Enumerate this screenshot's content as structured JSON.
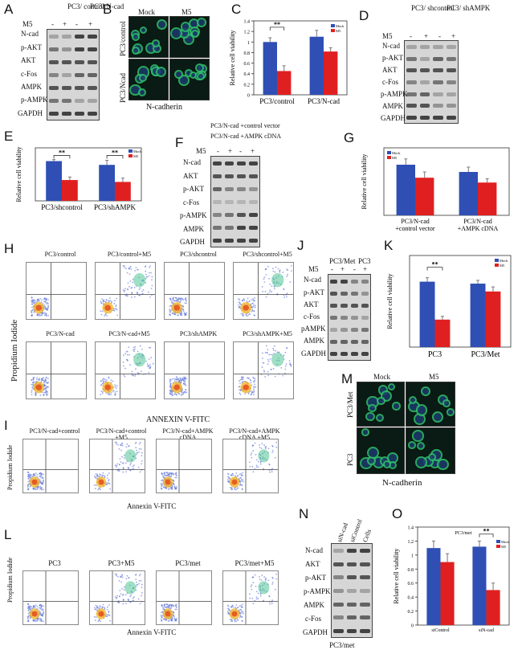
{
  "panels": {
    "A": {
      "letter": "A",
      "col_labels": [
        "PC3/ control",
        "PC3/ N-cad"
      ],
      "m5_label": "M5",
      "m5_signs": [
        "-",
        "+",
        "-",
        "+"
      ],
      "rows": [
        "N-cad",
        "p-AKT",
        "AKT",
        "c-Fos",
        "AMPK",
        "p-AMPK",
        "GAPDH"
      ]
    },
    "B": {
      "letter": "B",
      "col_labels": [
        "Mock",
        "M5"
      ],
      "row_labels": [
        "PC3/control",
        "PC3/Ncad"
      ],
      "caption": "N-cadherin"
    },
    "C": {
      "letter": "C",
      "chart_data": {
        "type": "bar",
        "categories": [
          "PC3/control",
          "PC3/N-cad"
        ],
        "series": [
          {
            "name": "Mock",
            "color": "#2f4fb5",
            "values": [
              1.0,
              1.1
            ]
          },
          {
            "name": "M5",
            "color": "#e02020",
            "values": [
              0.45,
              0.82
            ]
          }
        ],
        "errors": [
          [
            0.08,
            0.12
          ],
          [
            0.1,
            0.07
          ]
        ],
        "ylabel": "Relative cell viability",
        "ylim": [
          0,
          1.4
        ],
        "ticks": [
          "0",
          "0.2",
          "0.4",
          "0.6",
          "0.8",
          "1",
          "1.2",
          "1.4"
        ],
        "annotation": "**"
      }
    },
    "D": {
      "letter": "D",
      "col_labels": [
        "PC3/ shcontrol",
        "PC3/ shAMPK"
      ],
      "m5_label": "M5",
      "m5_signs": [
        "-",
        "+",
        "-",
        "+"
      ],
      "rows": [
        "N-cad",
        "p-AKT",
        "AKT",
        "c-Fos",
        "p-AMPK",
        "AMPK",
        "GAPDH"
      ]
    },
    "E": {
      "letter": "E",
      "chart_data": {
        "type": "bar",
        "categories": [
          "PC3/shcontrol",
          "PC3/shAMPK"
        ],
        "series": [
          {
            "name": "Mock",
            "color": "#2f4fb5",
            "values": [
              1.05,
              0.95
            ]
          },
          {
            "name": "M5",
            "color": "#e02020",
            "values": [
              0.55,
              0.5
            ]
          }
        ],
        "errors": [
          [
            0.04,
            0.12
          ],
          [
            0.08,
            0.1
          ]
        ],
        "ylabel": "Relative cell viability",
        "ylim": [
          0,
          1.4
        ],
        "annotations": [
          "**",
          "**"
        ]
      }
    },
    "F": {
      "letter": "F",
      "col_labels": [
        "PC3/N-cad +control vector",
        "PC3/N-cad +AMPK cDNA"
      ],
      "m5_label": "M5",
      "m5_signs": [
        "-",
        "+",
        "-",
        "+"
      ],
      "rows": [
        "N-cad",
        "AKT",
        "p-AKT",
        "c-Fos",
        "p-AMPK",
        "AMPK",
        "GAPDH"
      ]
    },
    "G": {
      "letter": "G",
      "chart_data": {
        "type": "bar",
        "categories": [
          "PC3/N-cad +control vector",
          "PC3/N-cad +AMPK cDNA"
        ],
        "series": [
          {
            "name": "Mock",
            "color": "#2f4fb5",
            "values": [
              1.05,
              0.9
            ]
          },
          {
            "name": "M5",
            "color": "#e02020",
            "values": [
              0.78,
              0.68
            ]
          }
        ],
        "errors": [
          [
            0.12,
            0.1
          ],
          [
            0.12,
            0.08
          ]
        ],
        "ylabel": "Relative cell viability",
        "ylim": [
          0,
          1.4
        ]
      }
    },
    "H": {
      "letter": "H",
      "ylabel": "Propidium Iodide",
      "xlabel": "ANNEXIN V-FITC",
      "plots": [
        "PC3/control",
        "PC3/control+M5",
        "PC3/shcontrol",
        "PC3/shcontrol+M5",
        "PC3/N-cad",
        "PC3/N-cad+M5",
        "PC3/shAMPK",
        "PC3/shAMPK+M5"
      ]
    },
    "I": {
      "letter": "I",
      "ylabel": "Propidium Iodide",
      "xlabel": "Annexin V-FITC",
      "plots": [
        "PC3/N-cad+control",
        "PC3/N-cad+control +M5",
        "PC3/N-cad+AMPK cDNA",
        "PC3/N-cad+AMPK cDNA +M5"
      ]
    },
    "J": {
      "letter": "J",
      "col_labels": [
        "PC3/Met",
        "PC3"
      ],
      "m5_label": "M5",
      "m5_signs": [
        "-",
        "+",
        "-",
        "+"
      ],
      "rows": [
        "N-cad",
        "p-AKT",
        "AKT",
        "c-Fos",
        "pAMPK",
        "AMPK",
        "GAPDH"
      ]
    },
    "K": {
      "letter": "K",
      "chart_data": {
        "type": "bar",
        "categories": [
          "PC3",
          "PC3/Met"
        ],
        "series": [
          {
            "name": "Mock",
            "color": "#2f4fb5",
            "values": [
              1.0,
              0.97
            ]
          },
          {
            "name": "M5",
            "color": "#e02020",
            "values": [
              0.42,
              0.85
            ]
          }
        ],
        "errors": [
          [
            0.06,
            0.05
          ],
          [
            0.05,
            0.07
          ]
        ],
        "ylabel": "Relative cell viability",
        "ylim": [
          0,
          1.4
        ],
        "annotation": "**"
      }
    },
    "L": {
      "letter": "L",
      "ylabel": "Propidium Iodide",
      "xlabel": "Annexin V-FITC",
      "plots": [
        "PC3",
        "PC3+M5",
        "PC3/met",
        "PC3/met+M5"
      ]
    },
    "M": {
      "letter": "M",
      "col_labels": [
        "Mock",
        "M5"
      ],
      "row_labels": [
        "PC3/Met",
        "PC3"
      ],
      "caption": "N-cadherin"
    },
    "N": {
      "letter": "N",
      "col_labels": [
        "siN-cad",
        "siControl",
        "Cells"
      ],
      "rows": [
        "N-cad",
        "AKT",
        "p-AKT",
        "p-AMPK",
        "AMPK",
        "c-Fos",
        "GAPDH"
      ],
      "caption": "PC3/met"
    },
    "O": {
      "letter": "O",
      "chart_data": {
        "type": "bar",
        "title": "PC3/met",
        "categories": [
          "siControl",
          "siN-cad"
        ],
        "series": [
          {
            "name": "Mock",
            "color": "#2f4fb5",
            "values": [
              1.1,
              1.12
            ]
          },
          {
            "name": "M5",
            "color": "#e02020",
            "values": [
              0.9,
              0.5
            ]
          }
        ],
        "errors": [
          [
            0.1,
            0.08
          ],
          [
            0.12,
            0.1
          ]
        ],
        "ylabel": "Relative cell viability",
        "ylim": [
          0,
          1.4
        ],
        "ticks": [
          "0",
          "0.2",
          "0.4",
          "0.6",
          "0.8",
          "1",
          "1.2",
          "1.4"
        ],
        "annotation": "**"
      }
    }
  }
}
